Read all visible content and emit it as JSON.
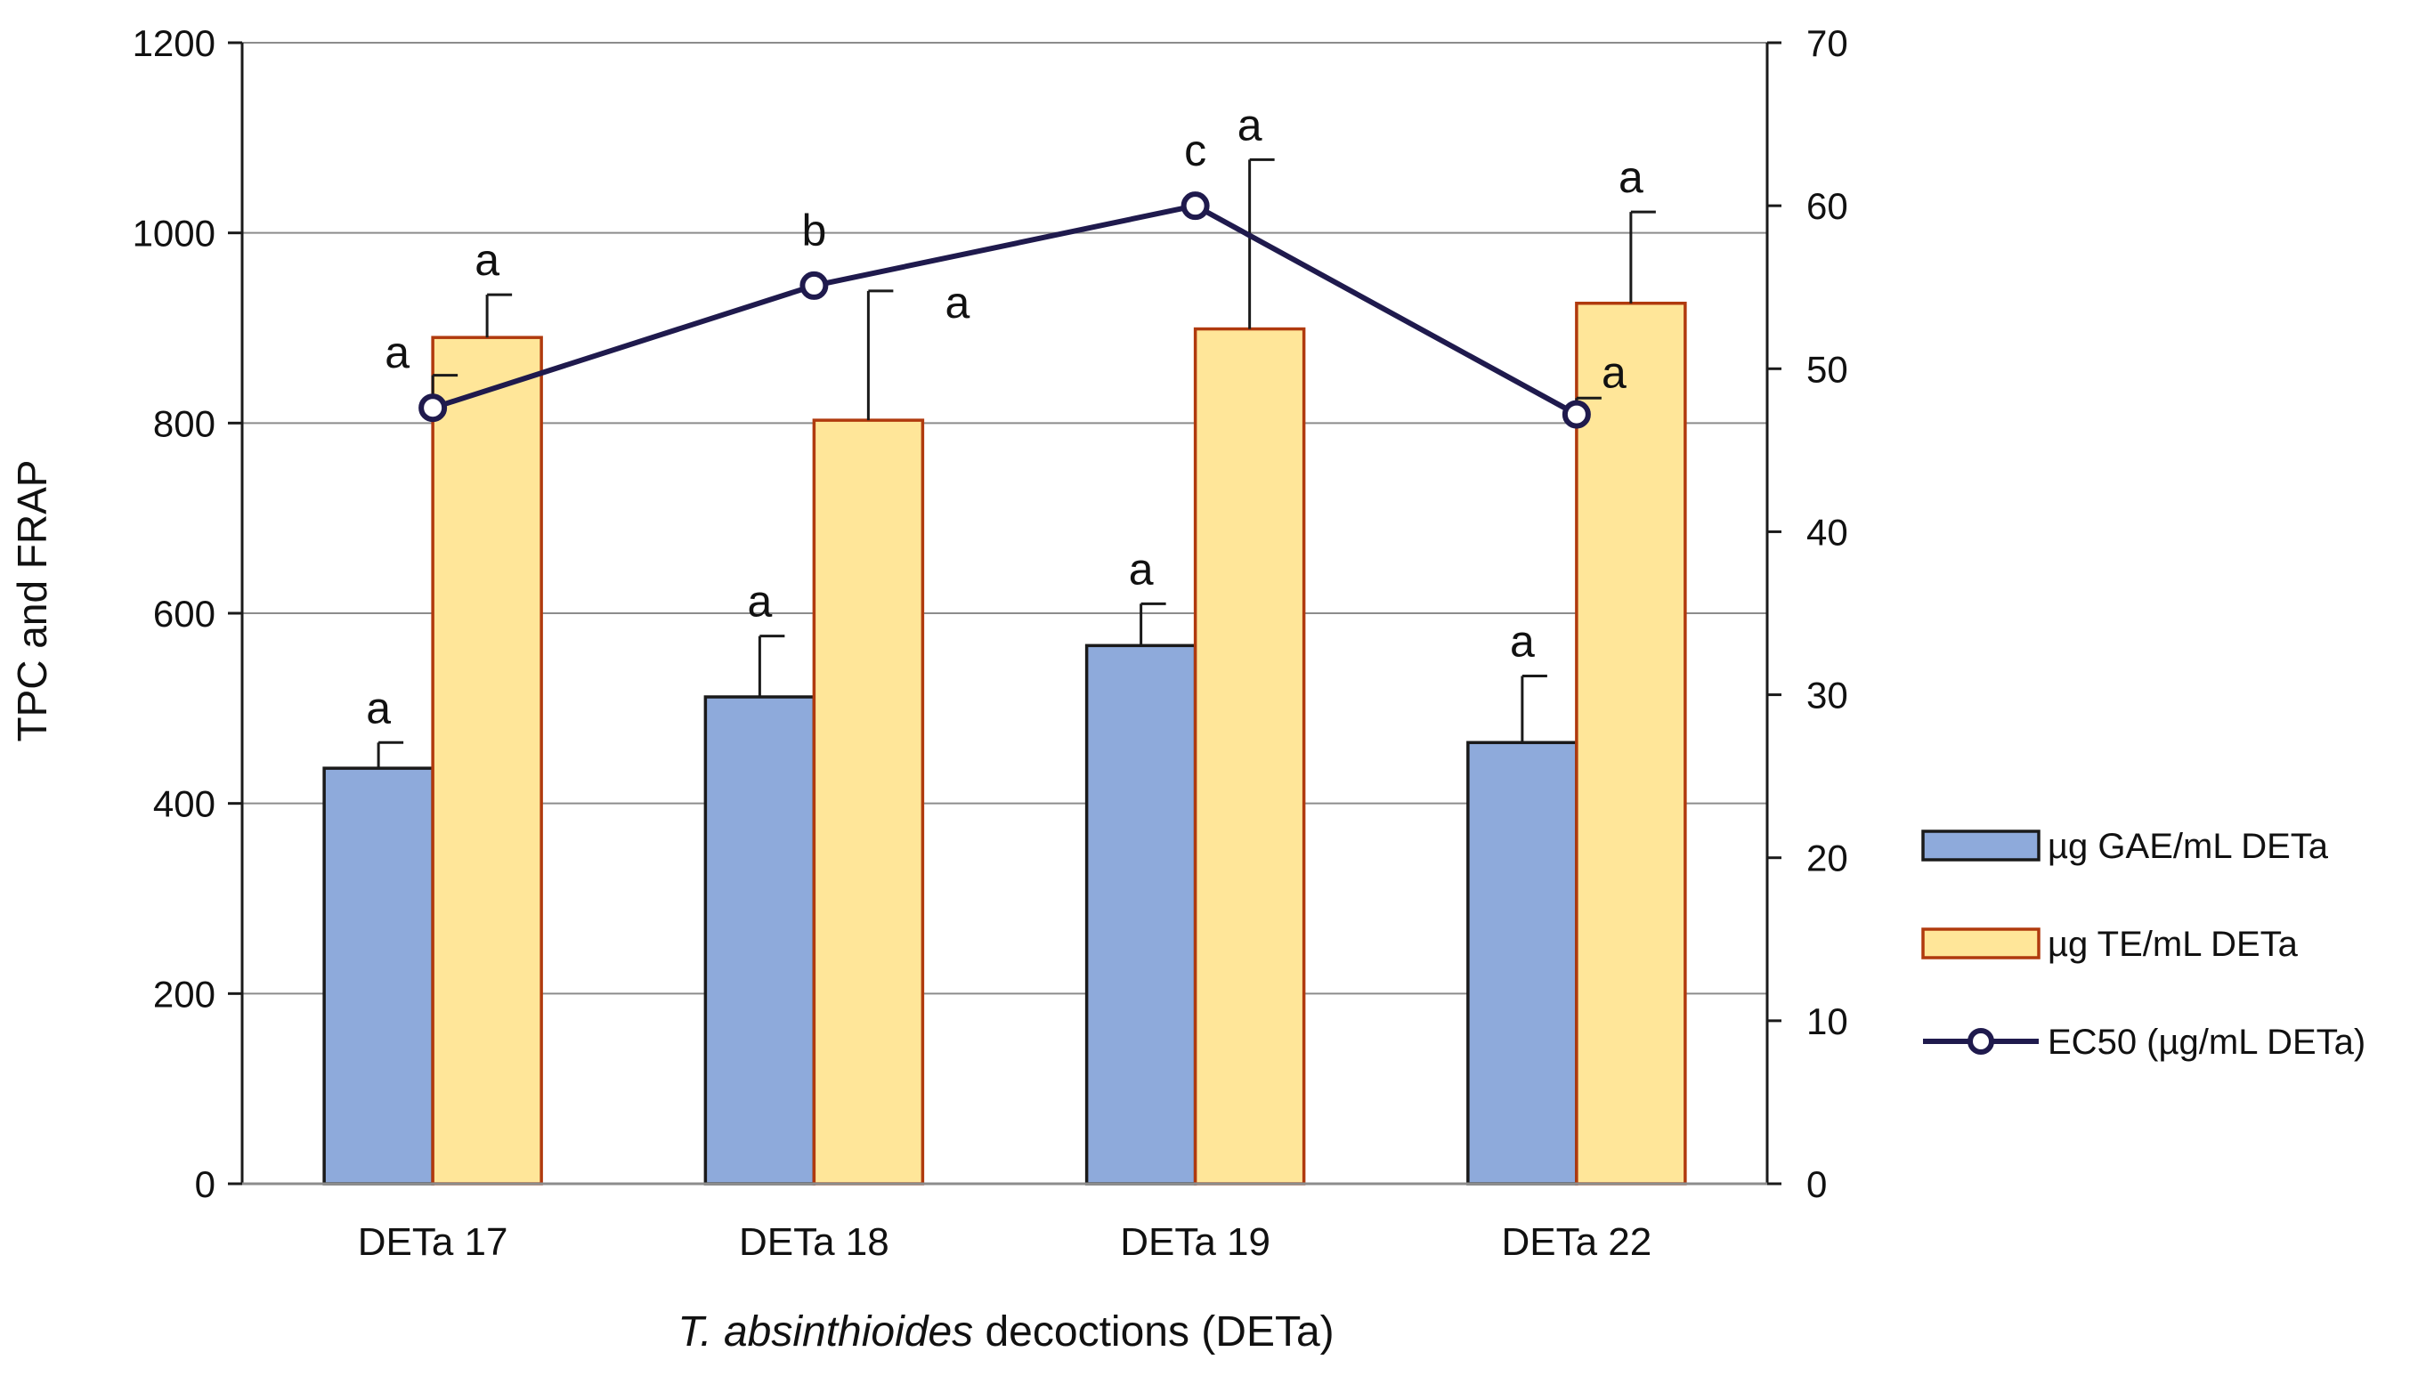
{
  "chart_data": {
    "type": "bar+line",
    "categories": [
      "DETa 17",
      "DETa 18",
      "DETa 19",
      "DETa 22"
    ],
    "series": [
      {
        "name": "µg GAE/mL DETa",
        "kind": "bar",
        "axis": "left",
        "color": "#8eaadb",
        "stroke": "#1a1a1a",
        "values": [
          437,
          512,
          566,
          464
        ],
        "errors": [
          27,
          64,
          44,
          70
        ],
        "labels": [
          "a",
          "a",
          "a",
          "a"
        ]
      },
      {
        "name": "µg TE/mL DETa",
        "kind": "bar",
        "axis": "left",
        "color": "#ffe699",
        "stroke": "#b03a0e",
        "values": [
          890,
          803,
          899,
          926
        ],
        "errors": [
          45,
          136,
          178,
          96
        ],
        "labels": [
          "a",
          "a",
          "a",
          "a"
        ]
      },
      {
        "name": "EC50 (µg/mL DETa)",
        "kind": "line",
        "axis": "right",
        "color": "#1f1a4d",
        "marker": "circle",
        "values": [
          47.6,
          55.1,
          60.0,
          47.2
        ],
        "errors": [
          2.0,
          0,
          0,
          1.0
        ],
        "labels": [
          "a",
          "b",
          "c",
          "a"
        ]
      }
    ],
    "ylabel": "TPC and FRAP",
    "xlabel_italic": "T. absinthioides",
    "xlabel_rest": " decoctions (DETa)",
    "ylim_left": [
      0,
      1200
    ],
    "yticks_left": [
      0,
      200,
      400,
      600,
      800,
      1000,
      1200
    ],
    "ylim_right": [
      0,
      70
    ],
    "yticks_right": [
      0,
      10,
      20,
      30,
      40,
      50,
      60,
      70
    ],
    "grid": true,
    "legend_position": "right"
  }
}
